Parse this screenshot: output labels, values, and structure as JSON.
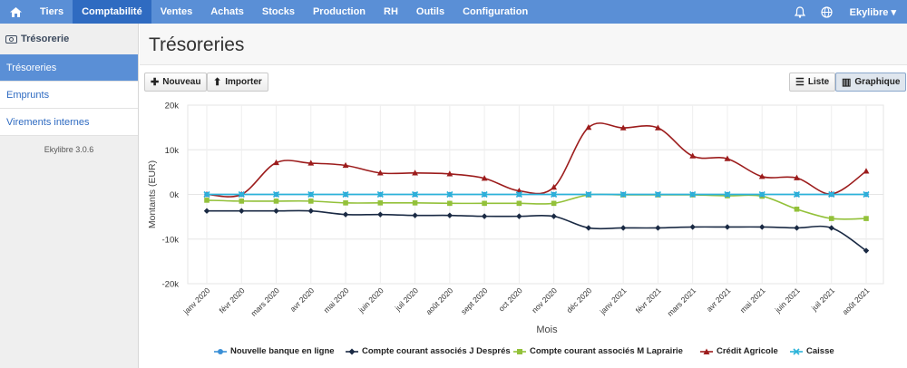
{
  "nav": {
    "items": [
      "Tiers",
      "Comptabilité",
      "Ventes",
      "Achats",
      "Stocks",
      "Production",
      "RH",
      "Outils",
      "Configuration"
    ],
    "active": "Comptabilité",
    "user": "Ekylibre ▾"
  },
  "sidebar": {
    "title": "Trésorerie",
    "items": [
      {
        "label": "Trésoreries",
        "active": true
      },
      {
        "label": "Emprunts",
        "active": false
      },
      {
        "label": "Virements internes",
        "active": false
      }
    ],
    "version": "Ekylibre 3.0.6"
  },
  "page": {
    "title": "Trésoreries",
    "new_button": "Nouveau",
    "import_button": "Importer",
    "list_button": "Liste",
    "graph_button": "Graphique"
  },
  "chart_data": {
    "type": "line",
    "xlabel": "Mois",
    "ylabel": "Montants (EUR)",
    "ylim": [
      -20000,
      20000
    ],
    "ytick_labels": [
      "20k",
      "10k",
      "0k",
      "-10k",
      "-20k"
    ],
    "yticks": [
      20000,
      10000,
      0,
      -10000,
      -20000
    ],
    "categories": [
      "janv 2020",
      "févr 2020",
      "mars 2020",
      "avr 2020",
      "mai 2020",
      "juin 2020",
      "juil 2020",
      "août 2020",
      "sept 2020",
      "oct 2020",
      "nov 2020",
      "déc 2020",
      "janv 2021",
      "févr 2021",
      "mars 2021",
      "avr 2021",
      "mai 2021",
      "juin 2021",
      "juil 2021",
      "août 2021"
    ],
    "grid": true,
    "legend_position": "bottom",
    "series": [
      {
        "name": "Nouvelle banque en ligne",
        "color": "#3a8fd6",
        "marker": "circle",
        "values": [
          0,
          0,
          0,
          0,
          0,
          0,
          0,
          0,
          0,
          0,
          0,
          0,
          0,
          0,
          0,
          0,
          0,
          0,
          0,
          0
        ]
      },
      {
        "name": "Compte courant associés J Després",
        "color": "#1a2a44",
        "marker": "diamond",
        "values": [
          -3700,
          -3700,
          -3700,
          -3700,
          -4500,
          -4500,
          -4700,
          -4700,
          -4900,
          -4900,
          -4900,
          -7500,
          -7500,
          -7500,
          -7300,
          -7300,
          -7300,
          -7500,
          -7500,
          -12600
        ]
      },
      {
        "name": "Compte courant associés M Laprairie",
        "color": "#93c13a",
        "marker": "square",
        "values": [
          -1300,
          -1500,
          -1500,
          -1500,
          -1900,
          -1900,
          -1900,
          -2000,
          -2000,
          -2000,
          -2000,
          -100,
          -100,
          -100,
          -100,
          -300,
          -400,
          -3300,
          -5400,
          -5400
        ]
      },
      {
        "name": "Crédit Agricole",
        "color": "#9c1c1c",
        "marker": "triangle",
        "values": [
          0,
          0,
          7100,
          7000,
          6500,
          4800,
          4800,
          4600,
          3600,
          800,
          1600,
          15000,
          14900,
          14900,
          8600,
          8000,
          4000,
          3700,
          100,
          5200
        ]
      },
      {
        "name": "Caisse",
        "color": "#2bb3d9",
        "marker": "cross",
        "values": [
          0,
          0,
          0,
          0,
          0,
          0,
          0,
          0,
          0,
          0,
          0,
          0,
          0,
          0,
          0,
          0,
          0,
          0,
          0,
          0
        ]
      }
    ]
  }
}
